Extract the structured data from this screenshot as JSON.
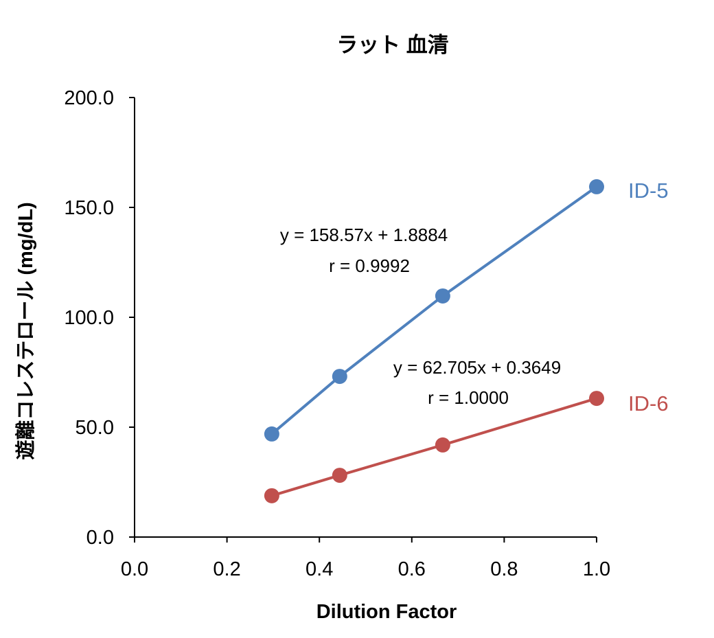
{
  "chart_data": {
    "type": "scatter",
    "title": "ラット 血清",
    "xlabel": "Dilution Factor",
    "ylabel": "遊離コレステロール (mg/dL)",
    "xlim": [
      0.0,
      1.0
    ],
    "ylim": [
      0.0,
      200.0
    ],
    "xticks": [
      "0.0",
      "0.2",
      "0.4",
      "0.6",
      "0.8",
      "1.0"
    ],
    "yticks": [
      "0.0",
      "50.0",
      "100.0",
      "150.0",
      "200.0"
    ],
    "grid": false,
    "series": [
      {
        "name": "ID-5",
        "color": "#4F81BD",
        "x": [
          0.297,
          0.444,
          0.667,
          1.0
        ],
        "y": [
          46.9,
          73.1,
          109.7,
          159.4
        ],
        "equation": "y = 158.57x + 1.8884",
        "r": "r = 0.9992"
      },
      {
        "name": "ID-6",
        "color": "#C0504D",
        "x": [
          0.297,
          0.444,
          0.667,
          1.0
        ],
        "y": [
          18.8,
          28.1,
          41.9,
          63.1
        ],
        "equation": "y = 62.705x + 0.3649",
        "r": "r = 1.0000"
      }
    ]
  }
}
